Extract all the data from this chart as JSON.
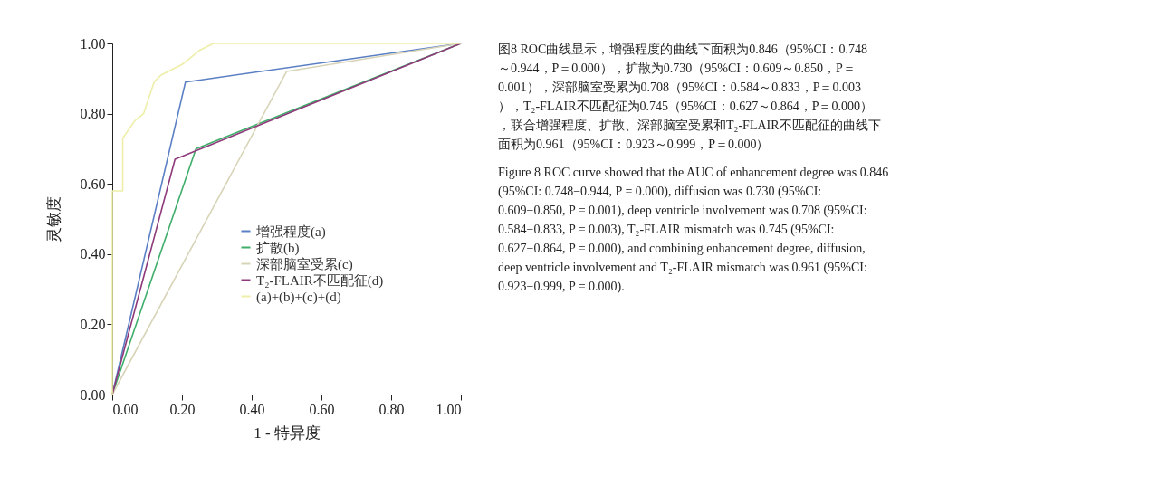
{
  "chart_data": {
    "type": "line",
    "xlabel": "1 - 特异度",
    "ylabel": "灵敏度",
    "xlim": [
      0,
      1
    ],
    "ylim": [
      0,
      1
    ],
    "xticks": [
      {
        "value": 0,
        "label": "0.00"
      },
      {
        "value": 0.2,
        "label": "0.20"
      },
      {
        "value": 0.4,
        "label": "0.40"
      },
      {
        "value": 0.6,
        "label": "0.60"
      },
      {
        "value": 0.8,
        "label": "0.80"
      },
      {
        "value": 1,
        "label": "1.00"
      }
    ],
    "yticks": [
      {
        "value": 0,
        "label": "0.00"
      },
      {
        "value": 0.2,
        "label": "0.20"
      },
      {
        "value": 0.4,
        "label": "0.40"
      },
      {
        "value": 0.6,
        "label": "0.60"
      },
      {
        "value": 0.8,
        "label": "0.80"
      },
      {
        "value": 1,
        "label": "1.00"
      }
    ],
    "grid": false,
    "legend": "bottom right",
    "marker": "none",
    "line_style": "solid",
    "series": [
      {
        "name": "增强程度(a)",
        "color": "#5b7fc4",
        "x": [
          0,
          0.21,
          1
        ],
        "values": [
          0,
          0.89,
          1
        ]
      },
      {
        "name": "扩散(b)",
        "color": "#3fae6a",
        "x": [
          0,
          0.24,
          1
        ],
        "values": [
          0,
          0.7,
          1
        ]
      },
      {
        "name": "深部脑室受累(c)",
        "color": "#d8d4b8",
        "x": [
          0,
          0.5,
          1
        ],
        "values": [
          0,
          0.92,
          1
        ]
      },
      {
        "name": "T₂-FLAIR不匹配征(d)",
        "color": "#8e3a7a",
        "x": [
          0,
          0.18,
          1
        ],
        "values": [
          0,
          0.67,
          1
        ]
      },
      {
        "name": "(a)+(b)+(c)+(d)",
        "color": "#eeeea8",
        "x": [
          0,
          0,
          0.03,
          0.03,
          0.065,
          0.09,
          0.12,
          0.14,
          0.2,
          0.25,
          0.29,
          1
        ],
        "values": [
          0,
          0.58,
          0.58,
          0.73,
          0.78,
          0.8,
          0.89,
          0.91,
          0.94,
          0.98,
          1,
          1
        ]
      }
    ],
    "annotations": [
      "图8  ROC曲线显示，增强程度的曲线下面积为0.846（95%CI：0.748～0.944，P＝0.000），扩散为0.730（95%CI：0.609～0.850，P＝0.001），深部脑室受累为0.708（95%CI：0.584～0.833，P＝0.003），T₂-FLAIR不匹配征为0.745（95%CI：0.627～0.864，P＝0.000），联合增强程度、扩散、深部脑室受累和T₂-FLAIR不匹配征的曲线下面积为0.961（95%CI：0.923～0.999，P＝0.000）",
      "Figure 8  ROC curve showed that the AUC of enhancement degree was 0.846 (95%CI: 0.748−0.944, P = 0.000), diffusion was 0.730 (95%CI: 0.609−0.850, P = 0.001), deep ventricle involvement was 0.708 (95%CI: 0.584−0.833, P = 0.003), T₂-FLAIR mismatch was 0.745 (95%CI: 0.627−0.864, P = 0.000), and combining enhancement degree, diffusion, deep ventricle involvement and T₂-FLAIR mismatch was 0.961 (95%CI: 0.923−0.999, P = 0.000)."
    ]
  }
}
